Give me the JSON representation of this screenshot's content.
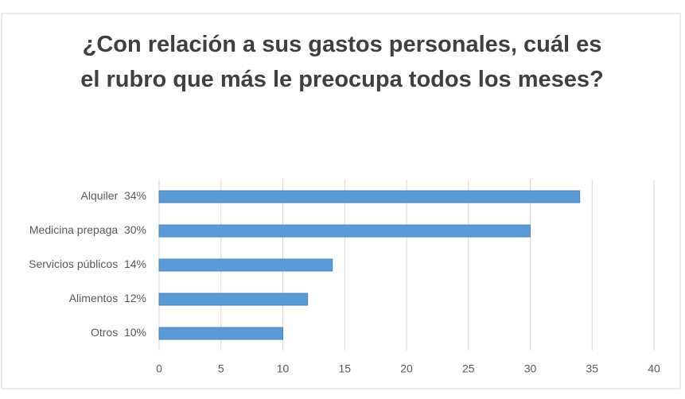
{
  "chart_data": {
    "type": "bar",
    "orientation": "horizontal",
    "title": "¿Con relación a sus gastos personales, cuál es el rubro que más le preocupa todos los meses?",
    "categories": [
      "Alquiler  34%",
      "Medicina prepaga  30%",
      "Servicios públicos  14%",
      "Alimentos  12%",
      "Otros  10%"
    ],
    "values": [
      34,
      30,
      14,
      12,
      10
    ],
    "color": "#5b9bd5",
    "xlim": [
      0,
      40
    ],
    "xticks": [
      0,
      5,
      10,
      15,
      20,
      25,
      30,
      35,
      40
    ],
    "grid": true
  }
}
